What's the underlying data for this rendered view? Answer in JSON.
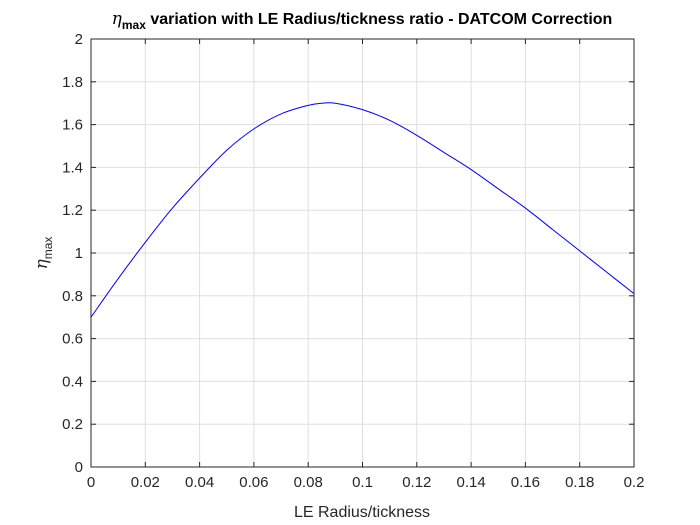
{
  "chart_data": {
    "type": "line",
    "title": {
      "symbol": "η",
      "subscript": "max",
      "text": " variation with LE Radius/tickness ratio - DATCOM Correction"
    },
    "xlabel": "LE Radius/tickness",
    "ylabel": {
      "symbol": "η",
      "subscript": "max"
    },
    "xlim": [
      0,
      0.2
    ],
    "ylim": [
      0,
      2
    ],
    "xticks": [
      0,
      0.02,
      0.04,
      0.06,
      0.08,
      0.1,
      0.12,
      0.14,
      0.16,
      0.18,
      0.2
    ],
    "xtick_labels": [
      "0",
      "0.02",
      "0.04",
      "0.06",
      "0.08",
      "0.1",
      "0.12",
      "0.14",
      "0.16",
      "0.18",
      "0.2"
    ],
    "yticks": [
      0,
      0.2,
      0.4,
      0.6,
      0.8,
      1,
      1.2,
      1.4,
      1.6,
      1.8,
      2
    ],
    "ytick_labels": [
      "0",
      "0.2",
      "0.4",
      "0.6",
      "0.8",
      "1",
      "1.2",
      "1.4",
      "1.6",
      "1.8",
      "2"
    ],
    "grid": true,
    "line_color": "#0000ff",
    "series": [
      {
        "x": [
          0,
          0.01,
          0.02,
          0.03,
          0.04,
          0.05,
          0.06,
          0.07,
          0.08,
          0.085,
          0.09,
          0.1,
          0.11,
          0.12,
          0.13,
          0.14,
          0.15,
          0.16,
          0.17,
          0.18,
          0.19,
          0.2
        ],
        "values": [
          0.7,
          0.88,
          1.05,
          1.21,
          1.35,
          1.48,
          1.58,
          1.65,
          1.69,
          1.7,
          1.7,
          1.67,
          1.62,
          1.55,
          1.47,
          1.39,
          1.3,
          1.21,
          1.11,
          1.01,
          0.91,
          0.81
        ]
      }
    ]
  }
}
